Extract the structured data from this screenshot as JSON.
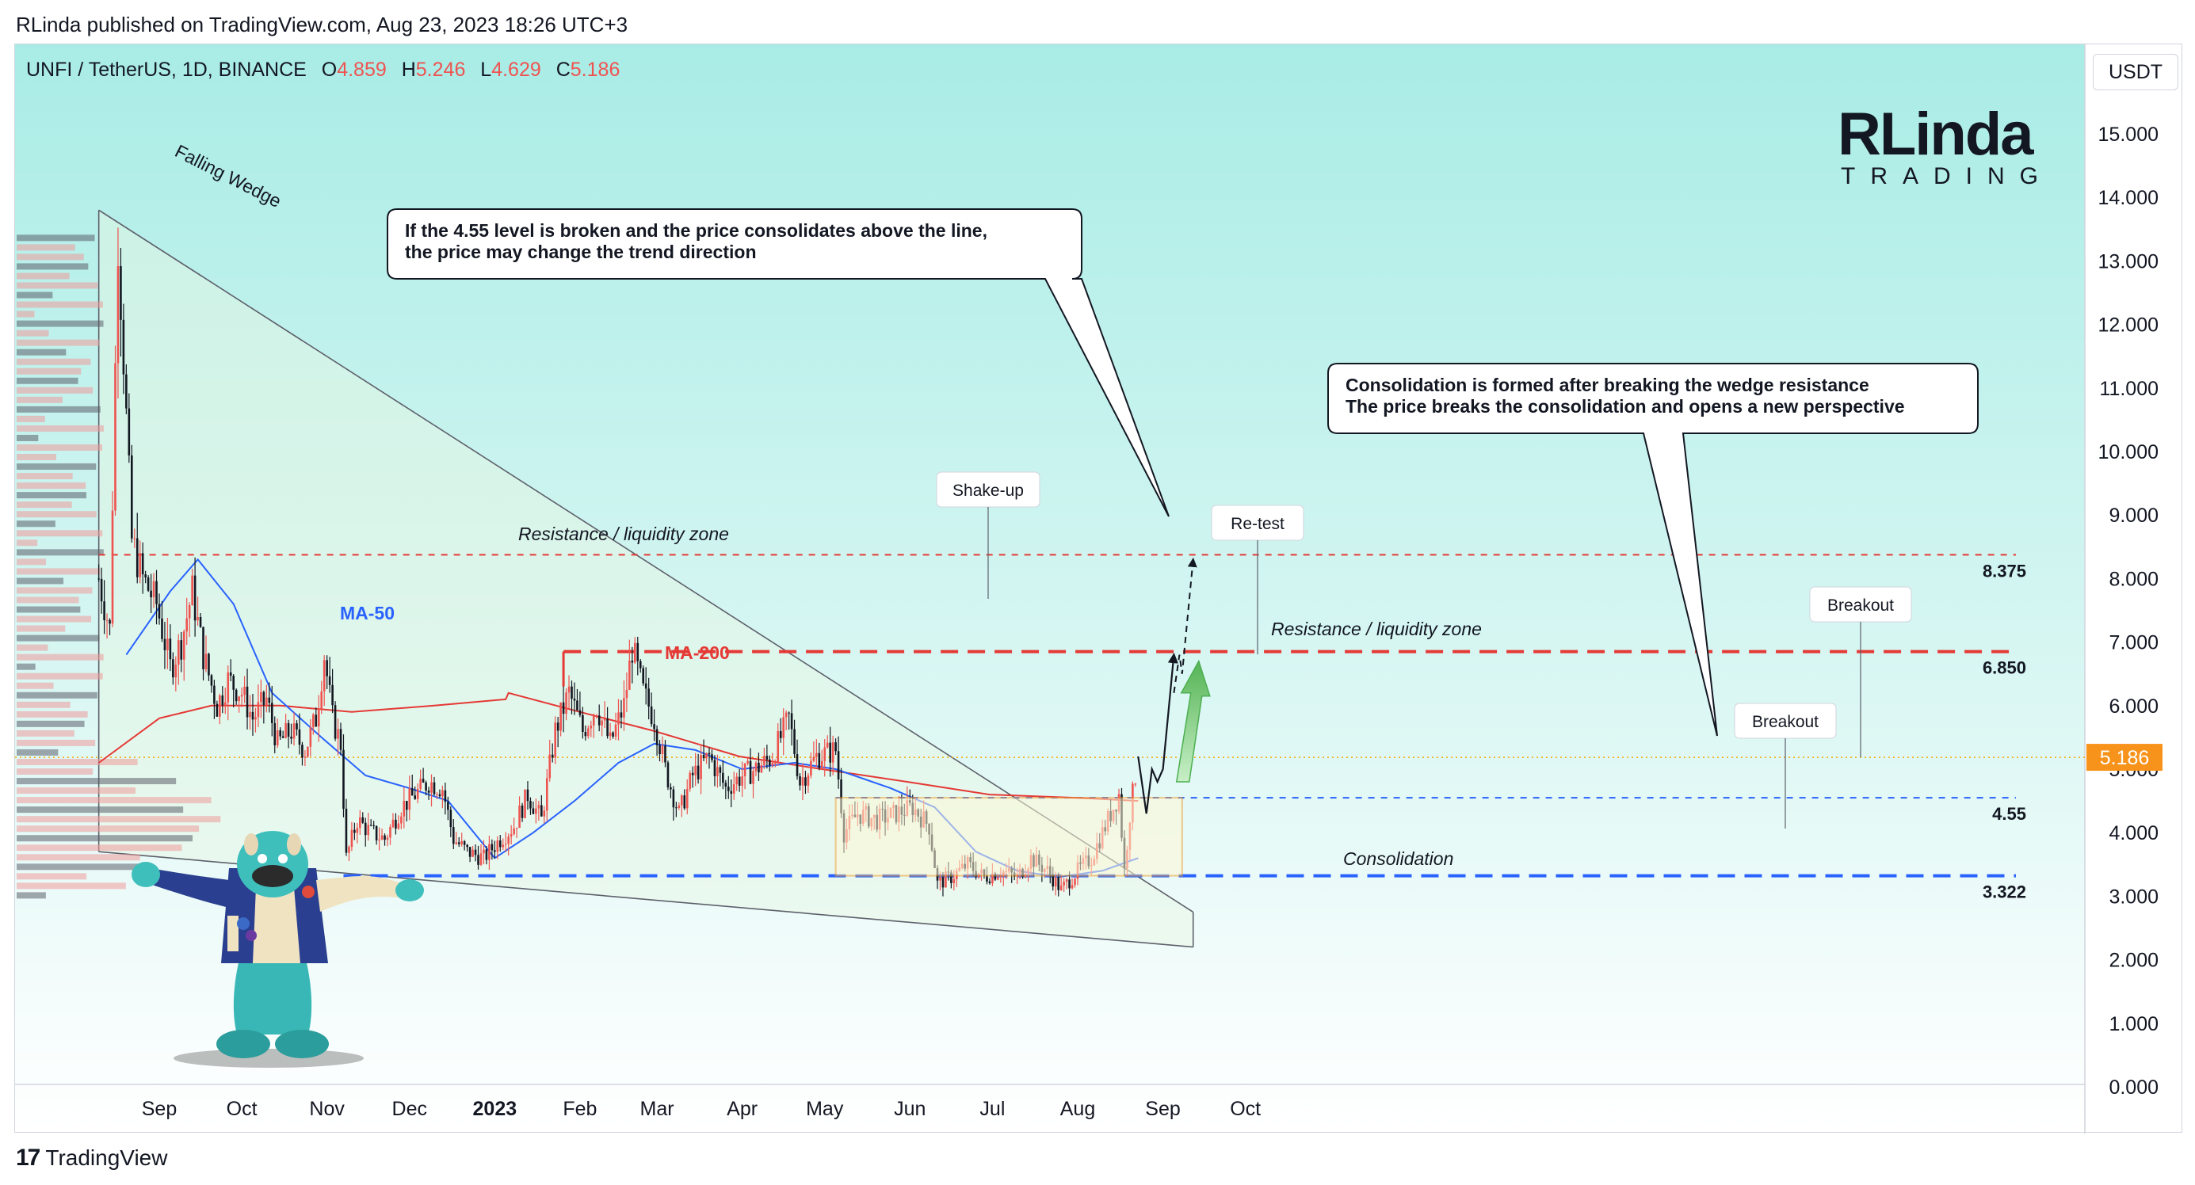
{
  "header": "RLinda published on TradingView.com, Aug 23, 2023 18:26 UTC+3",
  "footer_brand": "TradingView",
  "symbol_bar": {
    "title": "UNFI / TetherUS, 1D, BINANCE",
    "o_label": "O",
    "o_value": "4.859",
    "h_label": "H",
    "h_value": "5.246",
    "l_label": "L",
    "l_value": "4.629",
    "c_label": "C",
    "c_value": "5.186"
  },
  "currency_button": "USDT",
  "logo": {
    "line1": "RLinda",
    "line2": "TRADING"
  },
  "last_price_label": "5.186",
  "colors": {
    "up": "#ef5350",
    "down": "#131722",
    "ma50": "#2962ff",
    "ma200": "#e53935",
    "resistance": "#e53935",
    "support": "#2962ff",
    "wedge": "#5d606b"
  },
  "chart_data": {
    "type": "candlestick",
    "x_axis": {
      "labels": [
        "Sep",
        "Oct",
        "Nov",
        "Dec",
        "2023",
        "Feb",
        "Mar",
        "Apr",
        "May",
        "Jun",
        "Jul",
        "Aug",
        "Sep",
        "Oct"
      ]
    },
    "y_axis": {
      "labels": [
        "15.000",
        "14.000",
        "13.000",
        "12.000",
        "11.000",
        "10.000",
        "9.000",
        "8.000",
        "7.000",
        "6.000",
        "5.000",
        "4.000",
        "3.000",
        "2.000",
        "1.000",
        "0.000"
      ],
      "range": [
        0,
        15.8
      ]
    },
    "ohlc": {
      "open": 4.859,
      "high": 5.246,
      "low": 4.629,
      "close": 5.186
    },
    "price_path": [
      [
        "2022-08-10",
        8.0
      ],
      [
        "2022-08-14",
        7.2
      ],
      [
        "2022-08-17",
        13.4
      ],
      [
        "2022-08-19",
        11.5
      ],
      [
        "2022-08-22",
        8.6
      ],
      [
        "2022-08-26",
        8.0
      ],
      [
        "2022-08-31",
        7.6
      ],
      [
        "2022-09-05",
        6.6
      ],
      [
        "2022-09-09",
        7.0
      ],
      [
        "2022-09-13",
        7.8
      ],
      [
        "2022-09-17",
        6.8
      ],
      [
        "2022-09-22",
        6.0
      ],
      [
        "2022-09-26",
        6.4
      ],
      [
        "2022-10-01",
        6.2
      ],
      [
        "2022-10-05",
        5.8
      ],
      [
        "2022-10-10",
        6.1
      ],
      [
        "2022-10-14",
        5.4
      ],
      [
        "2022-10-19",
        5.6
      ],
      [
        "2022-10-24",
        5.3
      ],
      [
        "2022-10-28",
        5.8
      ],
      [
        "2022-10-31",
        6.8
      ],
      [
        "2022-11-03",
        5.8
      ],
      [
        "2022-11-06",
        5.4
      ],
      [
        "2022-11-08",
        3.6
      ],
      [
        "2022-11-12",
        4.2
      ],
      [
        "2022-11-17",
        4.0
      ],
      [
        "2022-11-22",
        3.9
      ],
      [
        "2022-11-28",
        4.4
      ],
      [
        "2022-12-03",
        4.6
      ],
      [
        "2022-12-08",
        4.8
      ],
      [
        "2022-12-13",
        4.7
      ],
      [
        "2022-12-17",
        3.9
      ],
      [
        "2022-12-22",
        3.7
      ],
      [
        "2022-12-28",
        3.6
      ],
      [
        "2023-01-03",
        3.9
      ],
      [
        "2023-01-08",
        4.1
      ],
      [
        "2023-01-13",
        4.6
      ],
      [
        "2023-01-18",
        4.2
      ],
      [
        "2023-01-23",
        5.6
      ],
      [
        "2023-01-28",
        6.2
      ],
      [
        "2023-02-02",
        5.6
      ],
      [
        "2023-02-07",
        6.0
      ],
      [
        "2023-02-12",
        5.4
      ],
      [
        "2023-02-17",
        6.0
      ],
      [
        "2023-02-20",
        6.9
      ],
      [
        "2023-02-24",
        6.2
      ],
      [
        "2023-02-28",
        5.8
      ],
      [
        "2023-03-04",
        5.0
      ],
      [
        "2023-03-09",
        4.3
      ],
      [
        "2023-03-14",
        4.9
      ],
      [
        "2023-03-20",
        5.2
      ],
      [
        "2023-03-26",
        4.7
      ],
      [
        "2023-04-01",
        4.9
      ],
      [
        "2023-04-06",
        5.0
      ],
      [
        "2023-04-12",
        5.2
      ],
      [
        "2023-04-18",
        5.8
      ],
      [
        "2023-04-22",
        4.8
      ],
      [
        "2023-04-28",
        5.2
      ],
      [
        "2023-05-05",
        5.3
      ],
      [
        "2023-05-08",
        4.0
      ],
      [
        "2023-05-13",
        4.3
      ],
      [
        "2023-05-20",
        4.2
      ],
      [
        "2023-05-27",
        4.3
      ],
      [
        "2023-06-02",
        4.4
      ],
      [
        "2023-06-08",
        4.1
      ],
      [
        "2023-06-11",
        3.2
      ],
      [
        "2023-06-16",
        3.3
      ],
      [
        "2023-06-22",
        3.5
      ],
      [
        "2023-06-28",
        3.3
      ],
      [
        "2023-07-04",
        3.4
      ],
      [
        "2023-07-10",
        3.3
      ],
      [
        "2023-07-15",
        3.6
      ],
      [
        "2023-07-21",
        3.4
      ],
      [
        "2023-07-26",
        3.1
      ],
      [
        "2023-08-01",
        3.4
      ],
      [
        "2023-08-06",
        3.6
      ],
      [
        "2023-08-11",
        4.1
      ],
      [
        "2023-08-16",
        4.6
      ],
      [
        "2023-08-18",
        3.4
      ],
      [
        "2023-08-20",
        4.3
      ],
      [
        "2023-08-23",
        5.19
      ]
    ],
    "ma50_path": [
      [
        "2022-08-20",
        6.8
      ],
      [
        "2022-09-05",
        7.8
      ],
      [
        "2022-09-15",
        8.3
      ],
      [
        "2022-09-28",
        7.6
      ],
      [
        "2022-10-12",
        6.2
      ],
      [
        "2022-10-30",
        5.5
      ],
      [
        "2022-11-15",
        4.9
      ],
      [
        "2022-12-01",
        4.7
      ],
      [
        "2022-12-15",
        4.5
      ],
      [
        "2023-01-01",
        3.6
      ],
      [
        "2023-01-15",
        4.0
      ],
      [
        "2023-01-30",
        4.5
      ],
      [
        "2023-02-15",
        5.1
      ],
      [
        "2023-02-28",
        5.4
      ],
      [
        "2023-03-15",
        5.3
      ],
      [
        "2023-04-01",
        5.0
      ],
      [
        "2023-04-20",
        5.1
      ],
      [
        "2023-05-05",
        5.0
      ],
      [
        "2023-05-25",
        4.7
      ],
      [
        "2023-06-10",
        4.4
      ],
      [
        "2023-06-25",
        3.7
      ],
      [
        "2023-07-10",
        3.4
      ],
      [
        "2023-07-25",
        3.3
      ],
      [
        "2023-08-10",
        3.4
      ],
      [
        "2023-08-23",
        3.6
      ]
    ],
    "ma200_path": [
      [
        "2022-08-10",
        5.1
      ],
      [
        "2022-09-01",
        5.8
      ],
      [
        "2022-09-20",
        6.0
      ],
      [
        "2022-10-15",
        6.0
      ],
      [
        "2022-11-10",
        5.9
      ],
      [
        "2022-12-10",
        6.0
      ],
      [
        "2023-01-05",
        6.1
      ],
      [
        "2023-01-06",
        6.2
      ],
      [
        "2023-02-01",
        5.9
      ],
      [
        "2023-02-28",
        5.6
      ],
      [
        "2023-03-31",
        5.2
      ],
      [
        "2023-04-30",
        5.0
      ],
      [
        "2023-05-31",
        4.8
      ],
      [
        "2023-06-30",
        4.6
      ],
      [
        "2023-07-31",
        4.55
      ],
      [
        "2023-08-23",
        4.5
      ]
    ],
    "levels": [
      {
        "label": "8.375",
        "value": 8.375,
        "style": "red-dashed"
      },
      {
        "label": "6.850",
        "value": 6.85,
        "style": "red-dashed-bold"
      },
      {
        "label": "4.55",
        "value": 4.55,
        "style": "blue-dashed"
      },
      {
        "label": "3.322",
        "value": 3.322,
        "style": "blue-dashed-bold"
      }
    ],
    "series_labels": {
      "ma50": "MA-50",
      "ma200": "MA-200"
    },
    "annotations": {
      "falling_wedge": "Falling Wedge",
      "resistance_zone_top": "Resistance / liquidity zone",
      "resistance_zone_mid": "Resistance / liquidity zone",
      "consolidation": "Consolidation",
      "shake_up": "Shake-up",
      "re_test": "Re-test",
      "breakout_1": "Breakout",
      "breakout_2": "Breakout",
      "callout_left": [
        "If the 4.55 level is broken and the price consolidates above the line,",
        "the price may change the trend direction"
      ],
      "callout_right": [
        "Consolidation is formed after breaking the wedge resistance",
        "The price breaks the consolidation and opens a new perspective"
      ]
    }
  }
}
